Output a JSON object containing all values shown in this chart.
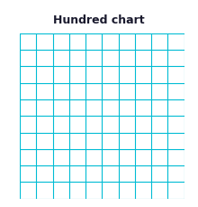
{
  "title": "Hundred chart",
  "title_fontsize": 9,
  "title_fontweight": "bold",
  "title_color": "#1a1a2e",
  "grid_rows": 10,
  "grid_cols": 10,
  "grid_color": "#00bcd4",
  "grid_linewidth": 0.8,
  "background_color": "#ffffff",
  "grid_bg_color": "#ffffff",
  "fig_width": 2.2,
  "fig_height": 2.29,
  "dpi": 100
}
